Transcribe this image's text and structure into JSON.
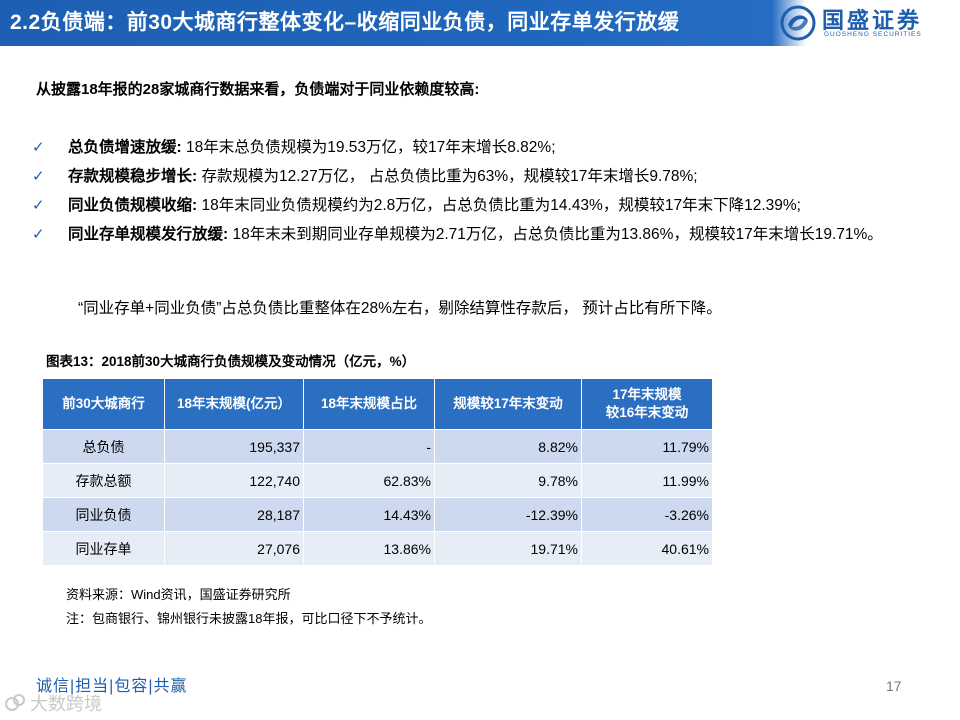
{
  "header": {
    "title": "2.2负债端：前30大城商行整体变化–收缩同业负债，同业存单发行放缓",
    "logo_name": "国盛证券",
    "logo_en": "GUOSHENG SECURITIES",
    "bar_color": "#1f5eae"
  },
  "intro": "从披露18年报的28家城商行数据来看，负债端对于同业依赖度较高:",
  "bullets": [
    {
      "icon": "check-icon",
      "mark": "✓",
      "key": "总负债增速放缓:",
      "text": " 18年末总负债规模为19.53万亿，较17年末增长8.82%;"
    },
    {
      "icon": "check-icon",
      "mark": "✓",
      "key": "存款规模稳步增长:",
      "text": " 存款规模为12.27万亿， 占总负债比重为63%，规模较17年末增长9.78%;"
    },
    {
      "icon": "check-icon",
      "mark": "✓",
      "key": "同业负债规模收缩:",
      "text": " 18年末同业负债规模约为2.8万亿，占总负债比重为14.43%，规模较17年末下降12.39%;"
    },
    {
      "icon": "check-icon",
      "mark": "✓",
      "key": "同业存单规模发行放缓:",
      "text": " 18年末未到期同业存单规模为2.71万亿，占总负债比重为13.86%，规模较17年末增长19.71%。"
    }
  ],
  "note": "“同业存单+同业负债”占总负债比重整体在28%左右，剔除结算性存款后， 预计占比有所下降。",
  "figure_title": "图表13：2018前30大城商行负债规模及变动情况（亿元，%）",
  "table": {
    "headers": [
      "前30大城商行",
      "18年末规模(亿元）",
      "18年末规模占比",
      "规模较17年末变动",
      "17年末规模较16年末变动"
    ],
    "header_lines": {
      "col5_line1": "17年末规模",
      "col5_line2": "较16年末变动"
    },
    "rows": [
      [
        "总负债",
        "195,337",
        "-",
        "8.82%",
        "11.79%"
      ],
      [
        "存款总额",
        "122,740",
        "62.83%",
        "9.78%",
        "11.99%"
      ],
      [
        "同业负债",
        "28,187",
        "14.43%",
        "-12.39%",
        "-3.26%"
      ],
      [
        "同业存单",
        "27,076",
        "13.86%",
        "19.71%",
        "40.61%"
      ]
    ],
    "header_color": "#2b6fc2",
    "row_colors": [
      "#ccd9ee",
      "#e7edf7"
    ]
  },
  "source": "资料来源：Wind资讯，国盛证券研究所",
  "footnote": "注：包商银行、锦州银行未披露18年报，可比口径下不予统计。",
  "footer": {
    "motto": "诚信|担当|包容|共赢",
    "page": "17",
    "watermark": "大数跨境"
  }
}
